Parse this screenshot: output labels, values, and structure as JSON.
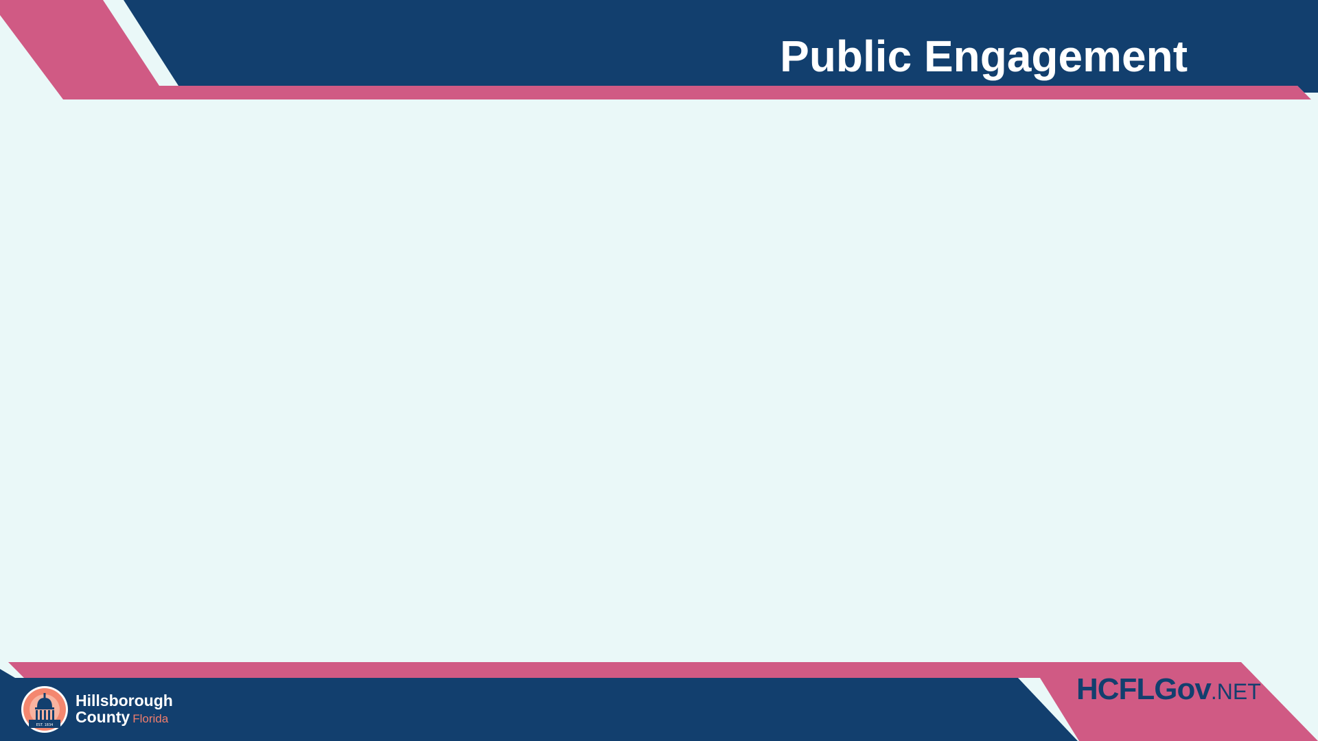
{
  "slide": {
    "title": "Public Engagement"
  },
  "footer": {
    "logo": {
      "line1": "Hillsborough",
      "line2": "County",
      "state": "Florida",
      "seal_text": "EST. 1834",
      "seal_icon": "courthouse-dome-icon"
    },
    "website": {
      "main": "HCFLGov",
      "tld": ".NET"
    }
  },
  "colors": {
    "background": "#eaf8f8",
    "navy": "#123f6e",
    "pink": "#d05a84",
    "accent_orange": "#f07d6c"
  }
}
